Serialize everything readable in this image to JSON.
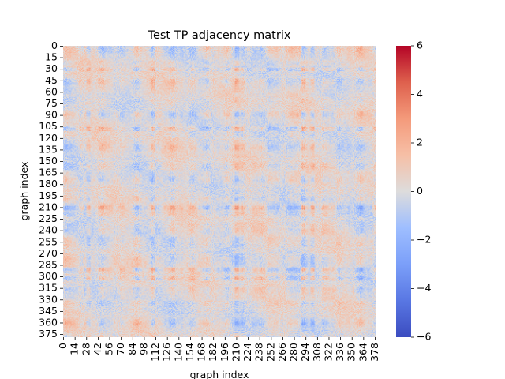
{
  "chart_data": {
    "type": "heatmap",
    "title": "Test TP adjacency matrix",
    "xlabel": "graph index",
    "ylabel": "graph index",
    "matrix_size": 379,
    "x_ticks": [
      0,
      14,
      28,
      42,
      56,
      70,
      84,
      98,
      112,
      126,
      140,
      154,
      168,
      182,
      196,
      210,
      224,
      238,
      252,
      266,
      280,
      294,
      308,
      322,
      336,
      350,
      364,
      378
    ],
    "y_ticks": [
      0,
      15,
      30,
      45,
      60,
      75,
      90,
      105,
      120,
      135,
      150,
      165,
      180,
      195,
      210,
      225,
      240,
      255,
      270,
      285,
      300,
      315,
      330,
      345,
      360,
      375
    ],
    "colorbar": {
      "colormap": "coolwarm",
      "vmin": -6,
      "vmax": 6,
      "ticks": [
        6,
        4,
        2,
        0,
        -2,
        -4,
        -6
      ]
    },
    "value_range_observed": [
      -3,
      3
    ],
    "pattern": "dense block-structured symmetric matrix, mostly light values between -2 and 2, with warmer (red) blocks and cooler (blue) bands"
  }
}
